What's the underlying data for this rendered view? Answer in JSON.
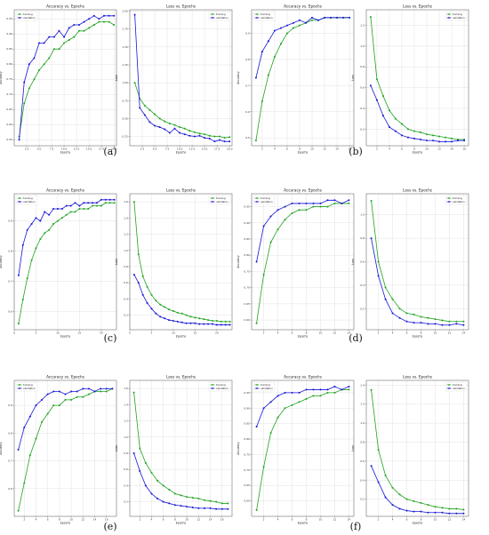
{
  "colors": {
    "training": "#1fa31f",
    "validation": "#1515d6",
    "grid": "#d6d6d6",
    "frame": "#555555"
  },
  "panel_labels": [
    "(a)",
    "(b)",
    "(c)",
    "(d)",
    "(e)",
    "(f)"
  ],
  "chart_data": [
    {
      "panel": "a",
      "type": "line",
      "title": "Accuracy vs. Epochs",
      "xlabel": "Epochs",
      "ylabel": "Accuracy",
      "xlim": [
        0,
        20.5
      ],
      "ylim": [
        0.53,
        0.98
      ],
      "xticks": [
        2.5,
        5.0,
        7.5,
        10.0,
        12.5,
        15.0,
        17.5,
        20.0
      ],
      "yticks": [
        0.55,
        0.6,
        0.65,
        0.7,
        0.75,
        0.8,
        0.85,
        0.9,
        0.95
      ],
      "legend": "top-left",
      "x": [
        1,
        2,
        3,
        4,
        5,
        6,
        7,
        8,
        9,
        10,
        11,
        12,
        13,
        14,
        15,
        16,
        17,
        18,
        19,
        20
      ],
      "series": [
        {
          "name": "training",
          "values": [
            0.56,
            0.67,
            0.72,
            0.75,
            0.78,
            0.8,
            0.82,
            0.85,
            0.85,
            0.87,
            0.88,
            0.89,
            0.91,
            0.91,
            0.92,
            0.93,
            0.94,
            0.94,
            0.94,
            0.93
          ]
        },
        {
          "name": "validation",
          "values": [
            0.55,
            0.74,
            0.8,
            0.82,
            0.87,
            0.87,
            0.89,
            0.89,
            0.91,
            0.89,
            0.92,
            0.93,
            0.93,
            0.94,
            0.95,
            0.96,
            0.95,
            0.96,
            0.96,
            0.96
          ]
        }
      ]
    },
    {
      "panel": "a",
      "type": "line",
      "title": "Loss vs. Epochs",
      "xlabel": "Epochs",
      "ylabel": "Loss",
      "xlim": [
        0,
        20.5
      ],
      "ylim": [
        0.12,
        2.02
      ],
      "xticks": [
        2.5,
        5.0,
        7.5,
        10.0,
        12.5,
        15.0,
        17.5,
        20.0
      ],
      "yticks": [
        0.25,
        0.5,
        0.75,
        1.0,
        1.25,
        1.5,
        1.75,
        2.0
      ],
      "legend": "top-right",
      "x": [
        1,
        2,
        3,
        4,
        5,
        6,
        7,
        8,
        9,
        10,
        11,
        12,
        13,
        14,
        15,
        16,
        17,
        18,
        19,
        20
      ],
      "series": [
        {
          "name": "training",
          "values": [
            1.0,
            0.78,
            0.68,
            0.62,
            0.56,
            0.5,
            0.46,
            0.43,
            0.41,
            0.38,
            0.36,
            0.33,
            0.31,
            0.29,
            0.28,
            0.26,
            0.25,
            0.25,
            0.23,
            0.24
          ]
        },
        {
          "name": "validation",
          "values": [
            1.95,
            0.65,
            0.55,
            0.45,
            0.4,
            0.38,
            0.35,
            0.3,
            0.36,
            0.3,
            0.28,
            0.26,
            0.25,
            0.26,
            0.23,
            0.22,
            0.18,
            0.2,
            0.18,
            0.18
          ]
        }
      ]
    },
    {
      "panel": "b",
      "type": "line",
      "title": "Accuracy vs. Epochs",
      "xlabel": "Epochs",
      "ylabel": "Accuracy",
      "xlim": [
        0.3,
        16.7
      ],
      "ylim": [
        0.47,
        0.99
      ],
      "xticks": [
        2,
        4,
        6,
        8,
        10,
        12,
        14,
        16
      ],
      "yticks": [
        0.5,
        0.6,
        0.7,
        0.8,
        0.9
      ],
      "legend": "top-left",
      "x": [
        1,
        2,
        3,
        4,
        5,
        6,
        7,
        8,
        9,
        10,
        11,
        12,
        13,
        14,
        15,
        16
      ],
      "series": [
        {
          "name": "training",
          "values": [
            0.49,
            0.64,
            0.74,
            0.81,
            0.86,
            0.9,
            0.92,
            0.93,
            0.94,
            0.95,
            0.95,
            0.96,
            0.96,
            0.96,
            0.96,
            0.96
          ]
        },
        {
          "name": "validation",
          "values": [
            0.73,
            0.83,
            0.87,
            0.91,
            0.92,
            0.93,
            0.94,
            0.95,
            0.94,
            0.96,
            0.95,
            0.96,
            0.96,
            0.96,
            0.96,
            0.96
          ]
        }
      ]
    },
    {
      "panel": "b",
      "type": "line",
      "title": "Loss vs. Epochs",
      "xlabel": "Epochs",
      "ylabel": "Loss",
      "xlim": [
        0.3,
        16.7
      ],
      "ylim": [
        0.04,
        1.35
      ],
      "xticks": [
        2,
        4,
        6,
        8,
        10,
        12,
        14,
        16
      ],
      "yticks": [
        0.2,
        0.4,
        0.6,
        0.8,
        1.0,
        1.2
      ],
      "legend": "top-right",
      "x": [
        1,
        2,
        3,
        4,
        5,
        6,
        7,
        8,
        9,
        10,
        11,
        12,
        13,
        14,
        15,
        16
      ],
      "series": [
        {
          "name": "training",
          "values": [
            1.28,
            0.68,
            0.52,
            0.38,
            0.3,
            0.25,
            0.2,
            0.18,
            0.17,
            0.15,
            0.14,
            0.13,
            0.12,
            0.11,
            0.1,
            0.1
          ]
        },
        {
          "name": "validation",
          "values": [
            0.62,
            0.48,
            0.33,
            0.22,
            0.18,
            0.14,
            0.12,
            0.11,
            0.1,
            0.09,
            0.09,
            0.08,
            0.08,
            0.08,
            0.09,
            0.09
          ]
        }
      ]
    },
    {
      "panel": "c",
      "type": "line",
      "title": "Accuracy vs. Epochs",
      "xlabel": "Epochs",
      "ylabel": "Accuracy",
      "xlim": [
        0,
        23.5
      ],
      "ylim": [
        0.54,
        0.99
      ],
      "xticks": [
        0,
        5,
        10,
        15,
        20
      ],
      "yticks": [
        0.6,
        0.7,
        0.8,
        0.9
      ],
      "legend": "top-left",
      "x": [
        1,
        2,
        3,
        4,
        5,
        6,
        7,
        8,
        9,
        10,
        11,
        12,
        13,
        14,
        15,
        16,
        17,
        18,
        19,
        20,
        21,
        22,
        23
      ],
      "series": [
        {
          "name": "training",
          "values": [
            0.56,
            0.64,
            0.71,
            0.77,
            0.81,
            0.84,
            0.86,
            0.87,
            0.89,
            0.9,
            0.91,
            0.92,
            0.93,
            0.93,
            0.94,
            0.94,
            0.94,
            0.95,
            0.95,
            0.95,
            0.96,
            0.96,
            0.96
          ]
        },
        {
          "name": "validation",
          "values": [
            0.72,
            0.82,
            0.87,
            0.89,
            0.91,
            0.9,
            0.93,
            0.92,
            0.94,
            0.94,
            0.94,
            0.95,
            0.95,
            0.96,
            0.95,
            0.96,
            0.96,
            0.96,
            0.96,
            0.97,
            0.97,
            0.97,
            0.97
          ]
        }
      ]
    },
    {
      "panel": "c",
      "type": "line",
      "title": "Loss vs. Epochs",
      "xlabel": "Epochs",
      "ylabel": "Loss",
      "xlim": [
        0,
        23.5
      ],
      "ylim": [
        0.02,
        1.7
      ],
      "xticks": [
        0,
        5,
        10,
        15,
        20
      ],
      "yticks": [
        0.2,
        0.4,
        0.6,
        0.8,
        1.0,
        1.2,
        1.4,
        1.6
      ],
      "legend": "top-right",
      "x": [
        1,
        2,
        3,
        4,
        5,
        6,
        7,
        8,
        9,
        10,
        11,
        12,
        13,
        14,
        15,
        16,
        17,
        18,
        19,
        20,
        21,
        22,
        23
      ],
      "series": [
        {
          "name": "training",
          "values": [
            1.6,
            0.95,
            0.68,
            0.55,
            0.45,
            0.38,
            0.33,
            0.3,
            0.27,
            0.25,
            0.23,
            0.22,
            0.2,
            0.18,
            0.17,
            0.16,
            0.15,
            0.14,
            0.13,
            0.13,
            0.12,
            0.12,
            0.12
          ]
        },
        {
          "name": "validation",
          "values": [
            0.7,
            0.6,
            0.45,
            0.35,
            0.28,
            0.22,
            0.18,
            0.16,
            0.14,
            0.13,
            0.12,
            0.11,
            0.1,
            0.1,
            0.1,
            0.09,
            0.09,
            0.09,
            0.09,
            0.08,
            0.08,
            0.08,
            0.08
          ]
        }
      ]
    },
    {
      "panel": "d",
      "type": "line",
      "title": "Accuracy vs. Epochs",
      "xlabel": "Epochs",
      "ylabel": "Accuracy",
      "xlim": [
        0.3,
        14.7
      ],
      "ylim": [
        0.57,
        0.99
      ],
      "xticks": [
        2,
        4,
        6,
        8,
        10,
        12,
        14
      ],
      "yticks": [
        0.6,
        0.65,
        0.7,
        0.75,
        0.8,
        0.85,
        0.9,
        0.95
      ],
      "legend": "top-left",
      "x": [
        1,
        2,
        3,
        4,
        5,
        6,
        7,
        8,
        9,
        10,
        11,
        12,
        13,
        14
      ],
      "series": [
        {
          "name": "training",
          "values": [
            0.59,
            0.74,
            0.84,
            0.88,
            0.91,
            0.93,
            0.94,
            0.94,
            0.95,
            0.95,
            0.95,
            0.96,
            0.96,
            0.96
          ]
        },
        {
          "name": "validation",
          "values": [
            0.78,
            0.89,
            0.92,
            0.94,
            0.95,
            0.96,
            0.96,
            0.96,
            0.96,
            0.96,
            0.97,
            0.97,
            0.96,
            0.97
          ]
        }
      ]
    },
    {
      "panel": "d",
      "type": "line",
      "title": "Loss vs. Epochs",
      "xlabel": "Epochs",
      "ylabel": "Loss",
      "xlim": [
        0.3,
        14.7
      ],
      "ylim": [
        0.02,
        1.18
      ],
      "xticks": [
        2,
        4,
        6,
        8,
        10,
        12,
        14
      ],
      "yticks": [
        0.2,
        0.4,
        0.6,
        0.8,
        1.0
      ],
      "legend": "top-right",
      "x": [
        1,
        2,
        3,
        4,
        5,
        6,
        7,
        8,
        9,
        10,
        11,
        12,
        13,
        14
      ],
      "series": [
        {
          "name": "training",
          "values": [
            1.12,
            0.6,
            0.38,
            0.28,
            0.2,
            0.16,
            0.15,
            0.13,
            0.12,
            0.11,
            0.1,
            0.09,
            0.09,
            0.09
          ]
        },
        {
          "name": "validation",
          "values": [
            0.8,
            0.48,
            0.28,
            0.16,
            0.12,
            0.09,
            0.08,
            0.08,
            0.07,
            0.07,
            0.06,
            0.06,
            0.07,
            0.06
          ]
        }
      ]
    },
    {
      "panel": "e",
      "type": "line",
      "title": "Accuracy vs. Epochs",
      "xlabel": "Epochs",
      "ylabel": "Accuracy",
      "xlim": [
        0.3,
        17.7
      ],
      "ylim": [
        0.5,
        0.99
      ],
      "xticks": [
        2,
        4,
        6,
        8,
        10,
        12,
        14,
        16
      ],
      "yticks": [
        0.6,
        0.7,
        0.8,
        0.9
      ],
      "legend": "top-left",
      "x": [
        1,
        2,
        3,
        4,
        5,
        6,
        7,
        8,
        9,
        10,
        11,
        12,
        13,
        14,
        15,
        16,
        17
      ],
      "series": [
        {
          "name": "training",
          "values": [
            0.52,
            0.62,
            0.72,
            0.78,
            0.84,
            0.87,
            0.9,
            0.9,
            0.92,
            0.92,
            0.93,
            0.93,
            0.94,
            0.95,
            0.95,
            0.95,
            0.96
          ]
        },
        {
          "name": "validation",
          "values": [
            0.74,
            0.82,
            0.86,
            0.9,
            0.92,
            0.94,
            0.95,
            0.95,
            0.94,
            0.95,
            0.95,
            0.96,
            0.96,
            0.95,
            0.96,
            0.96,
            0.96
          ]
        }
      ]
    },
    {
      "panel": "e",
      "type": "line",
      "title": "Loss vs. Epochs",
      "xlabel": "Epochs",
      "ylabel": "Loss",
      "xlim": [
        0.3,
        17.7
      ],
      "ylim": [
        0.02,
        1.7
      ],
      "xticks": [
        2,
        4,
        6,
        8,
        10,
        12,
        14,
        16
      ],
      "yticks": [
        0.2,
        0.4,
        0.6,
        0.8,
        1.0,
        1.2,
        1.4,
        1.6
      ],
      "legend": "top-right",
      "x": [
        1,
        2,
        3,
        4,
        5,
        6,
        7,
        8,
        9,
        10,
        11,
        12,
        13,
        14,
        15,
        16,
        17
      ],
      "series": [
        {
          "name": "training",
          "values": [
            1.55,
            0.86,
            0.68,
            0.56,
            0.46,
            0.4,
            0.35,
            0.3,
            0.28,
            0.26,
            0.25,
            0.24,
            0.22,
            0.21,
            0.2,
            0.18,
            0.18
          ]
        },
        {
          "name": "validation",
          "values": [
            0.8,
            0.58,
            0.4,
            0.3,
            0.24,
            0.2,
            0.18,
            0.16,
            0.15,
            0.14,
            0.13,
            0.12,
            0.12,
            0.12,
            0.11,
            0.11,
            0.11
          ]
        }
      ]
    },
    {
      "panel": "f",
      "type": "line",
      "title": "Accuracy vs. Epochs",
      "xlabel": "Epochs",
      "ylabel": "Accuracy",
      "xlim": [
        0.3,
        14.7
      ],
      "ylim": [
        0.55,
        0.99
      ],
      "xticks": [
        2,
        4,
        6,
        8,
        10,
        12,
        14
      ],
      "yticks": [
        0.6,
        0.65,
        0.7,
        0.75,
        0.8,
        0.85,
        0.9,
        0.95
      ],
      "legend": "top-left",
      "x": [
        1,
        2,
        3,
        4,
        5,
        6,
        7,
        8,
        9,
        10,
        11,
        12,
        13,
        14
      ],
      "series": [
        {
          "name": "training",
          "values": [
            0.57,
            0.71,
            0.82,
            0.87,
            0.9,
            0.91,
            0.92,
            0.93,
            0.94,
            0.94,
            0.95,
            0.95,
            0.96,
            0.96
          ]
        },
        {
          "name": "validation",
          "values": [
            0.84,
            0.9,
            0.92,
            0.94,
            0.95,
            0.95,
            0.95,
            0.96,
            0.96,
            0.96,
            0.96,
            0.97,
            0.96,
            0.97
          ]
        }
      ]
    },
    {
      "panel": "f",
      "type": "line",
      "title": "Loss vs. Epochs",
      "xlabel": "Epochs",
      "ylabel": "Loss",
      "xlim": [
        0.3,
        14.7
      ],
      "ylim": [
        0.02,
        1.45
      ],
      "xticks": [
        2,
        4,
        6,
        8,
        10,
        12,
        14
      ],
      "yticks": [
        0.2,
        0.4,
        0.6,
        0.8,
        1.0,
        1.2,
        1.4
      ],
      "legend": "top-right",
      "x": [
        1,
        2,
        3,
        4,
        5,
        6,
        7,
        8,
        9,
        10,
        11,
        12,
        13,
        14
      ],
      "series": [
        {
          "name": "training",
          "values": [
            1.35,
            0.72,
            0.45,
            0.32,
            0.25,
            0.2,
            0.18,
            0.16,
            0.14,
            0.12,
            0.11,
            0.1,
            0.1,
            0.09
          ]
        },
        {
          "name": "validation",
          "values": [
            0.55,
            0.38,
            0.22,
            0.14,
            0.1,
            0.08,
            0.07,
            0.07,
            0.06,
            0.06,
            0.06,
            0.05,
            0.05,
            0.05
          ]
        }
      ]
    }
  ]
}
